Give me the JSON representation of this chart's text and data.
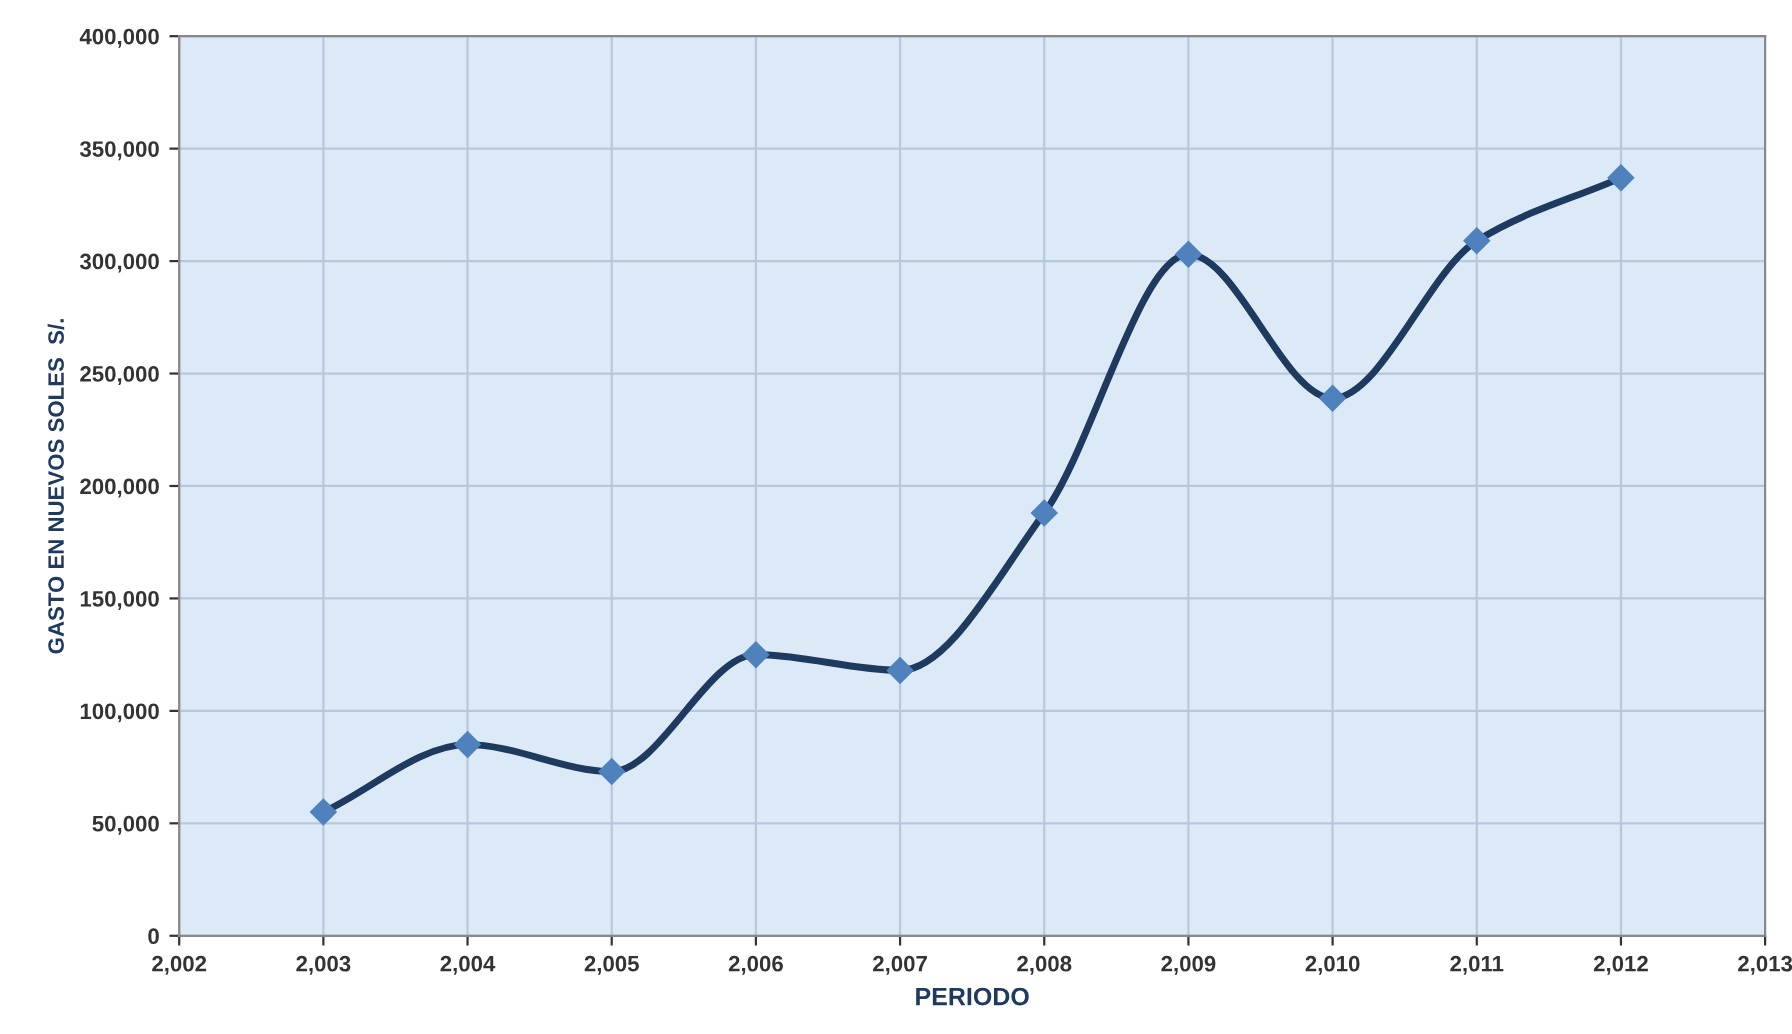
{
  "chart_data": {
    "type": "line",
    "xlabel": "PERIODO",
    "ylabel": "GASTO EN NUEVOS SOLES  S/.",
    "x": [
      2003,
      2004,
      2005,
      2006,
      2007,
      2008,
      2009,
      2010,
      2011,
      2012
    ],
    "series": [
      {
        "color": "#1f3a5f",
        "values": [
          55000,
          85000,
          73000,
          125000,
          118000,
          188000,
          303000,
          239000,
          309000,
          337000
        ]
      }
    ],
    "marker": "diamond",
    "xlim": [
      2002,
      2013
    ],
    "xticks": [
      {
        "value": 2002,
        "label": "2,002"
      },
      {
        "value": 2003,
        "label": "2,003"
      },
      {
        "value": 2004,
        "label": "2,004"
      },
      {
        "value": 2005,
        "label": "2,005"
      },
      {
        "value": 2006,
        "label": "2,006"
      },
      {
        "value": 2007,
        "label": "2,007"
      },
      {
        "value": 2008,
        "label": "2,008"
      },
      {
        "value": 2009,
        "label": "2,009"
      },
      {
        "value": 2010,
        "label": "2,010"
      },
      {
        "value": 2011,
        "label": "2,011"
      },
      {
        "value": 2012,
        "label": "2,012"
      },
      {
        "value": 2013,
        "label": "2,013"
      }
    ],
    "ylim": [
      0,
      400000
    ],
    "yticks": [
      0,
      {
        "value": 50000,
        "label": "50,000"
      },
      {
        "value": 100000,
        "label": "100,000"
      },
      {
        "value": 150000,
        "label": "150,000"
      },
      {
        "value": 200000,
        "label": "200,000"
      },
      {
        "value": 250000,
        "label": "250,000"
      },
      {
        "value": 300000,
        "label": "300,000"
      },
      {
        "value": 350000,
        "label": "350,000"
      },
      {
        "value": 400000,
        "label": "400,000"
      }
    ],
    "grid": true
  }
}
